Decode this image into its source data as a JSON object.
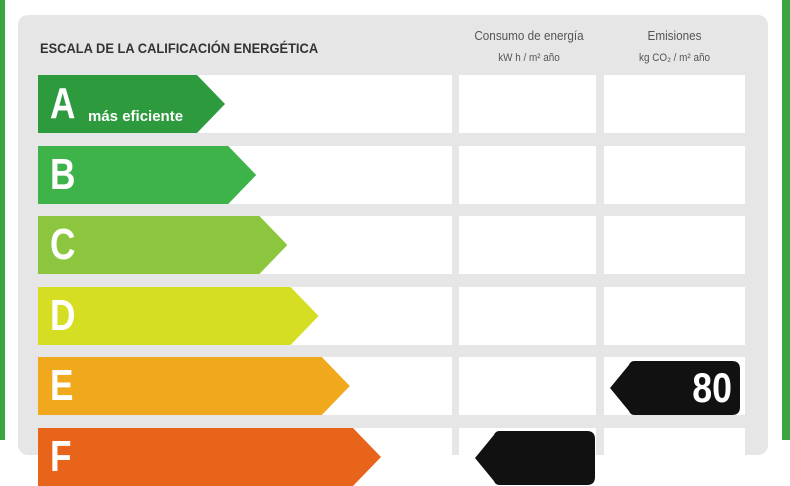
{
  "header": {
    "title": "ESCALA DE LA CALIFICACIÓN ENERGÉTICA",
    "consumption_label": "Consumo de energía",
    "consumption_unit": "kW h / m² año",
    "emissions_label": "Emisiones",
    "emissions_unit": "kg CO₂ / m² año"
  },
  "rows": [
    {
      "letter": "A",
      "label": "más eficiente"
    },
    {
      "letter": "B"
    },
    {
      "letter": "C"
    },
    {
      "letter": "D"
    },
    {
      "letter": "E",
      "emissions": 80
    },
    {
      "letter": "F"
    }
  ]
}
